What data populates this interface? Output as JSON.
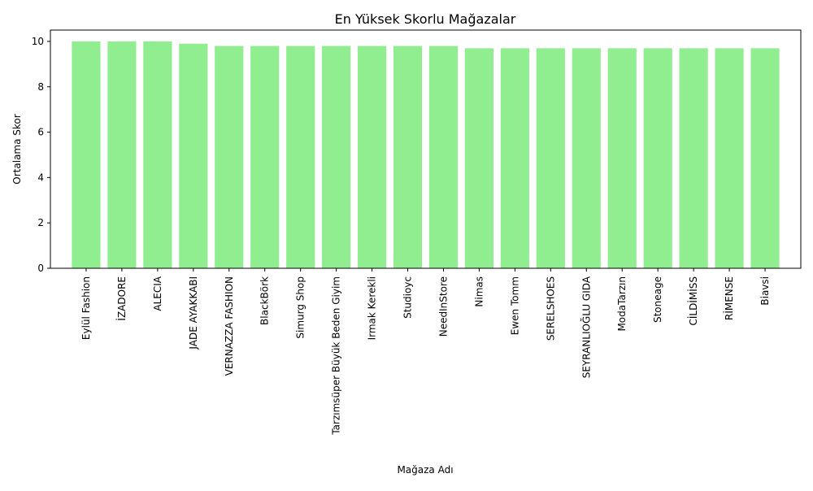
{
  "chart_data": {
    "type": "bar",
    "title": "En Yüksek Skorlu Mağazalar",
    "xlabel": "Mağaza Adı",
    "ylabel": "Ortalama Skor",
    "ylim": [
      0,
      10.5
    ],
    "yticks": [
      0,
      2,
      4,
      6,
      8,
      10
    ],
    "grid": false,
    "bar_color": "#90ee90",
    "categories": [
      "Eylül Fashion",
      "İZADORE",
      "ALECIA",
      "JADE AYAKKABI",
      "VERNAZZA FASHION",
      "BlackBörk",
      "Simurg Shop",
      "Tarzımsüper Büyük Beden Giyim",
      "Irmak Kerekli",
      "Studioyc",
      "NeedInStore",
      "Nimas",
      "Ewen Tomm",
      "SERELSHOES",
      "SEYRANLIOĞLU GIDA",
      "ModaTarzın",
      "Stoneage",
      "CİLDİMİSS",
      "RİMENSE",
      "Biavsi"
    ],
    "values": [
      10.0,
      10.0,
      10.0,
      9.9,
      9.8,
      9.8,
      9.8,
      9.8,
      9.8,
      9.8,
      9.8,
      9.7,
      9.7,
      9.7,
      9.7,
      9.7,
      9.7,
      9.7,
      9.7,
      9.7
    ]
  }
}
